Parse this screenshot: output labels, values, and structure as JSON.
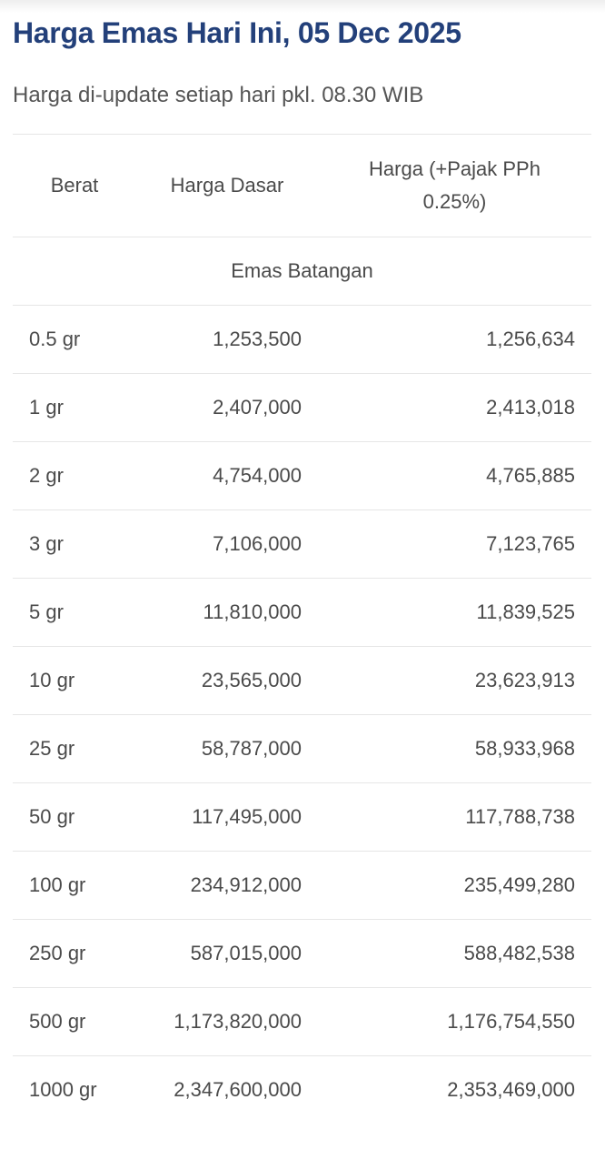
{
  "title": "Harga Emas Hari Ini, 05 Dec 2025",
  "subtitle": "Harga di-update setiap hari pkl. 08.30 WIB",
  "colors": {
    "title": "#23407a",
    "text": "#4a4a4a",
    "divider": "#e6e6e6"
  },
  "table": {
    "headers": [
      "Berat",
      "Harga Dasar",
      "Harga (+Pajak PPh 0.25%)"
    ],
    "section": "Emas Batangan",
    "rows": [
      {
        "weight": "0.5 gr",
        "base": "1,253,500",
        "with_tax": "1,256,634"
      },
      {
        "weight": "1 gr",
        "base": "2,407,000",
        "with_tax": "2,413,018"
      },
      {
        "weight": "2 gr",
        "base": "4,754,000",
        "with_tax": "4,765,885"
      },
      {
        "weight": "3 gr",
        "base": "7,106,000",
        "with_tax": "7,123,765"
      },
      {
        "weight": "5 gr",
        "base": "11,810,000",
        "with_tax": "11,839,525"
      },
      {
        "weight": "10 gr",
        "base": "23,565,000",
        "with_tax": "23,623,913"
      },
      {
        "weight": "25 gr",
        "base": "58,787,000",
        "with_tax": "58,933,968"
      },
      {
        "weight": "50 gr",
        "base": "117,495,000",
        "with_tax": "117,788,738"
      },
      {
        "weight": "100 gr",
        "base": "234,912,000",
        "with_tax": "235,499,280"
      },
      {
        "weight": "250 gr",
        "base": "587,015,000",
        "with_tax": "588,482,538"
      },
      {
        "weight": "500 gr",
        "base": "1,173,820,000",
        "with_tax": "1,176,754,550"
      },
      {
        "weight": "1000 gr",
        "base": "2,347,600,000",
        "with_tax": "2,353,469,000"
      }
    ]
  }
}
